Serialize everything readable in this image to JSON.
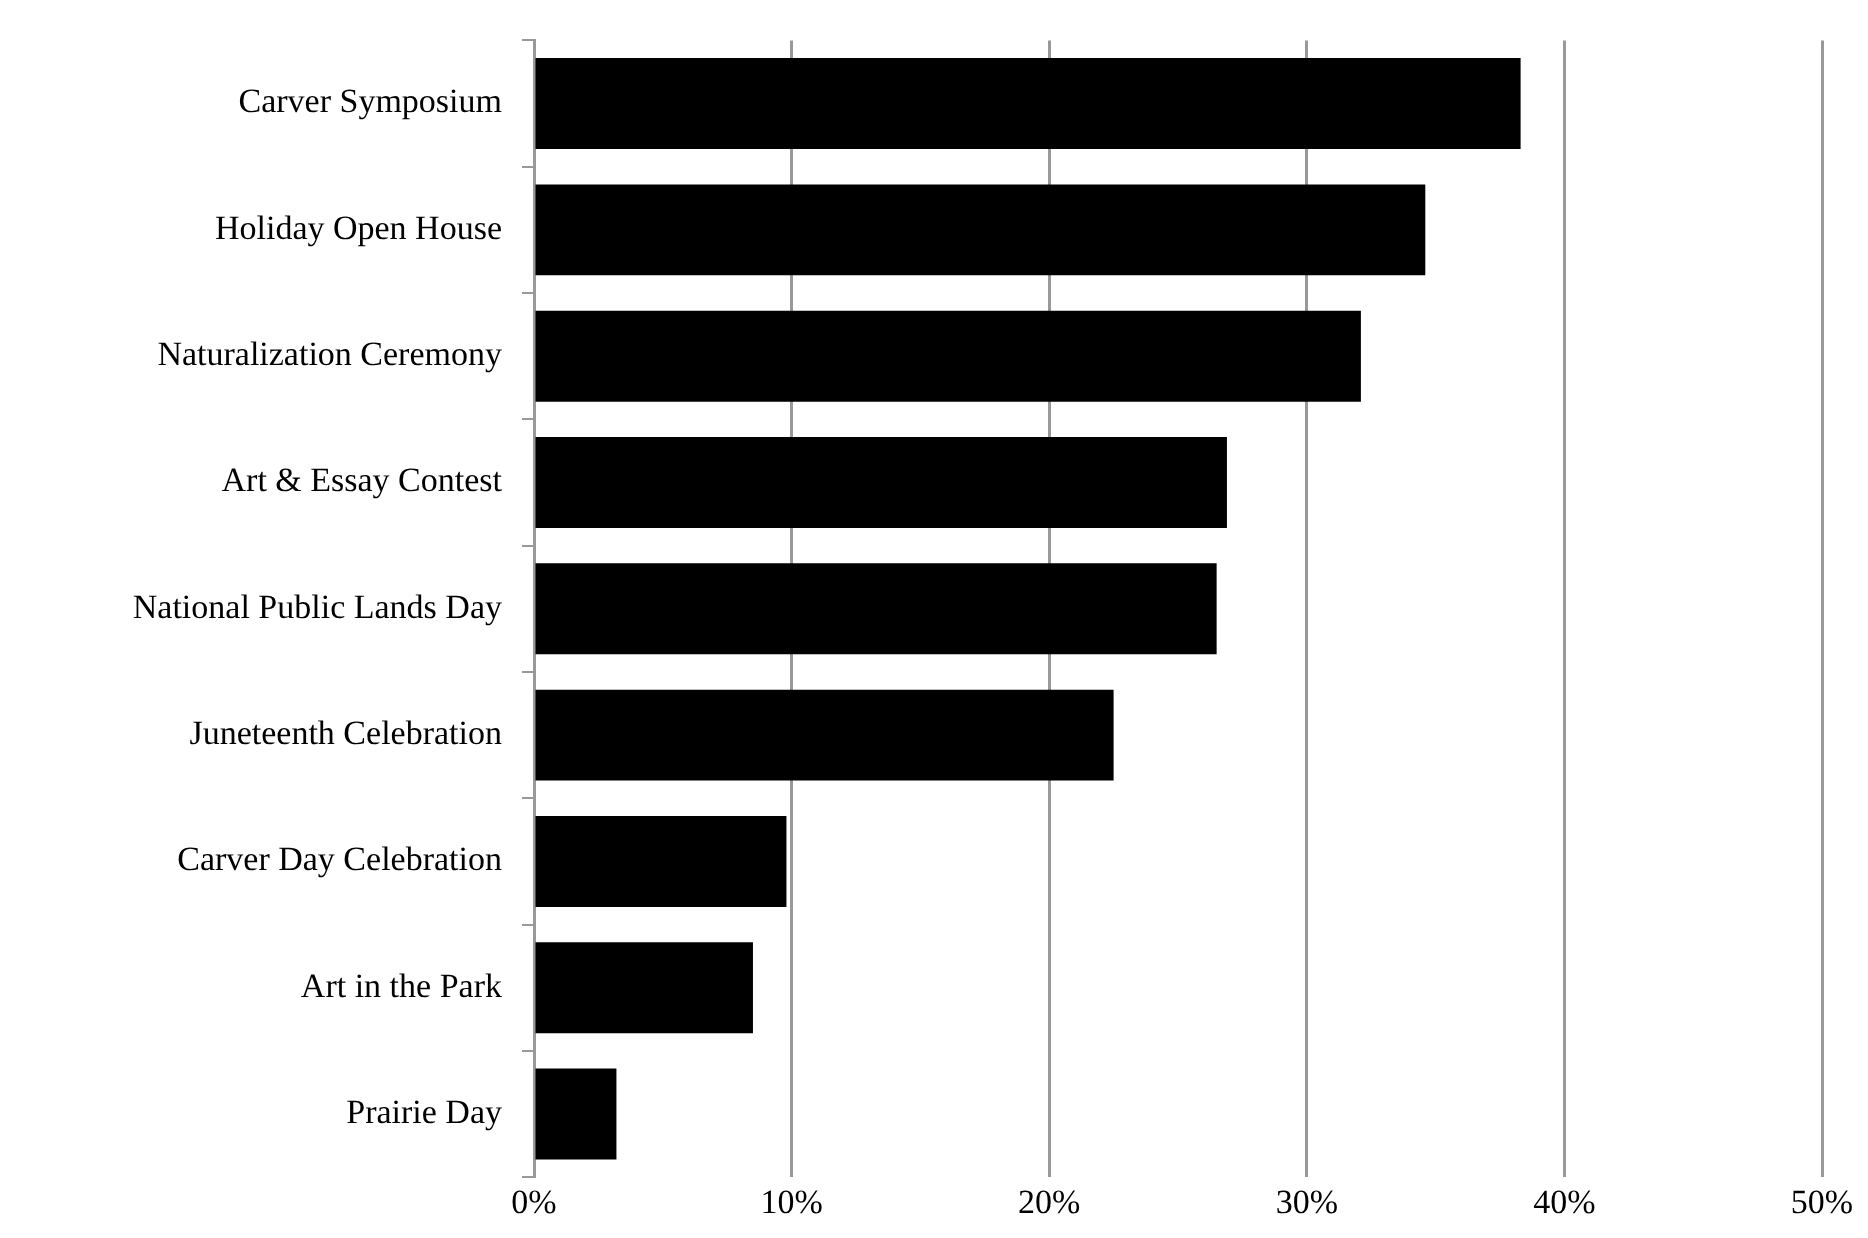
{
  "chart_data": {
    "type": "bar",
    "orientation": "horizontal",
    "categories": [
      "Carver Symposium",
      "Holiday Open House",
      "Naturalization Ceremony",
      "Art & Essay Contest",
      "National Public Lands Day",
      "Juneteenth Celebration",
      "Carver Day Celebration",
      "Art in the Park",
      "Prairie Day"
    ],
    "values": [
      38.3,
      34.6,
      32.1,
      26.9,
      26.5,
      22.5,
      9.8,
      8.5,
      3.2
    ],
    "color": "#000000",
    "xlim": [
      0,
      50
    ],
    "xticks": [
      {
        "value": 0,
        "label": "0%"
      },
      {
        "value": 10,
        "label": "10%"
      },
      {
        "value": 20,
        "label": "20%"
      },
      {
        "value": 30,
        "label": "30%"
      },
      {
        "value": 40,
        "label": "40%"
      },
      {
        "value": 50,
        "label": "50%"
      }
    ],
    "grid": "x",
    "legend": false
  }
}
